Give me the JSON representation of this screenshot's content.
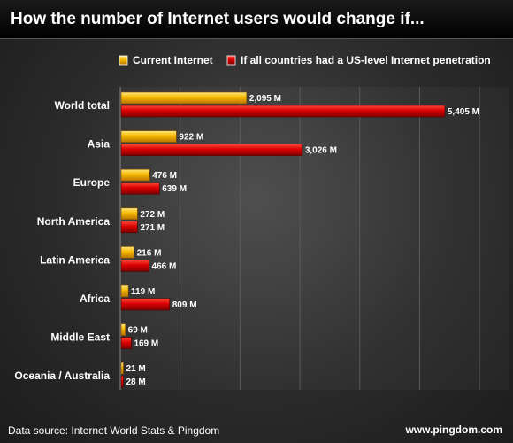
{
  "chart_data": {
    "type": "bar",
    "orientation": "horizontal",
    "title": "How the number of Internet users would change if...",
    "categories": [
      "World total",
      "Asia",
      "Europe",
      "North America",
      "Latin America",
      "Africa",
      "Middle East",
      "Oceania / Australia"
    ],
    "series": [
      {
        "name": "Current Internet",
        "color": "#f0b000",
        "values": [
          2095,
          922,
          476,
          272,
          216,
          119,
          69,
          21
        ],
        "labels": [
          "2,095 M",
          "922 M",
          "476 M",
          "272 M",
          "216 M",
          "119 M",
          "69 M",
          "21 M"
        ]
      },
      {
        "name": "If all countries had a US-level Internet penetration",
        "color": "#cc0000",
        "values": [
          5405,
          3026,
          639,
          271,
          466,
          809,
          169,
          28
        ],
        "labels": [
          "5,405 M",
          "3,026 M",
          "639 M",
          "271 M",
          "466 M",
          "809 M",
          "169 M",
          "28 M"
        ]
      }
    ],
    "xlim": [
      0,
      6500
    ],
    "grid": true,
    "legend_position": "top-right"
  },
  "footer": {
    "source": "Data source: Internet World Stats & Pingdom",
    "url": "www.pingdom.com"
  }
}
